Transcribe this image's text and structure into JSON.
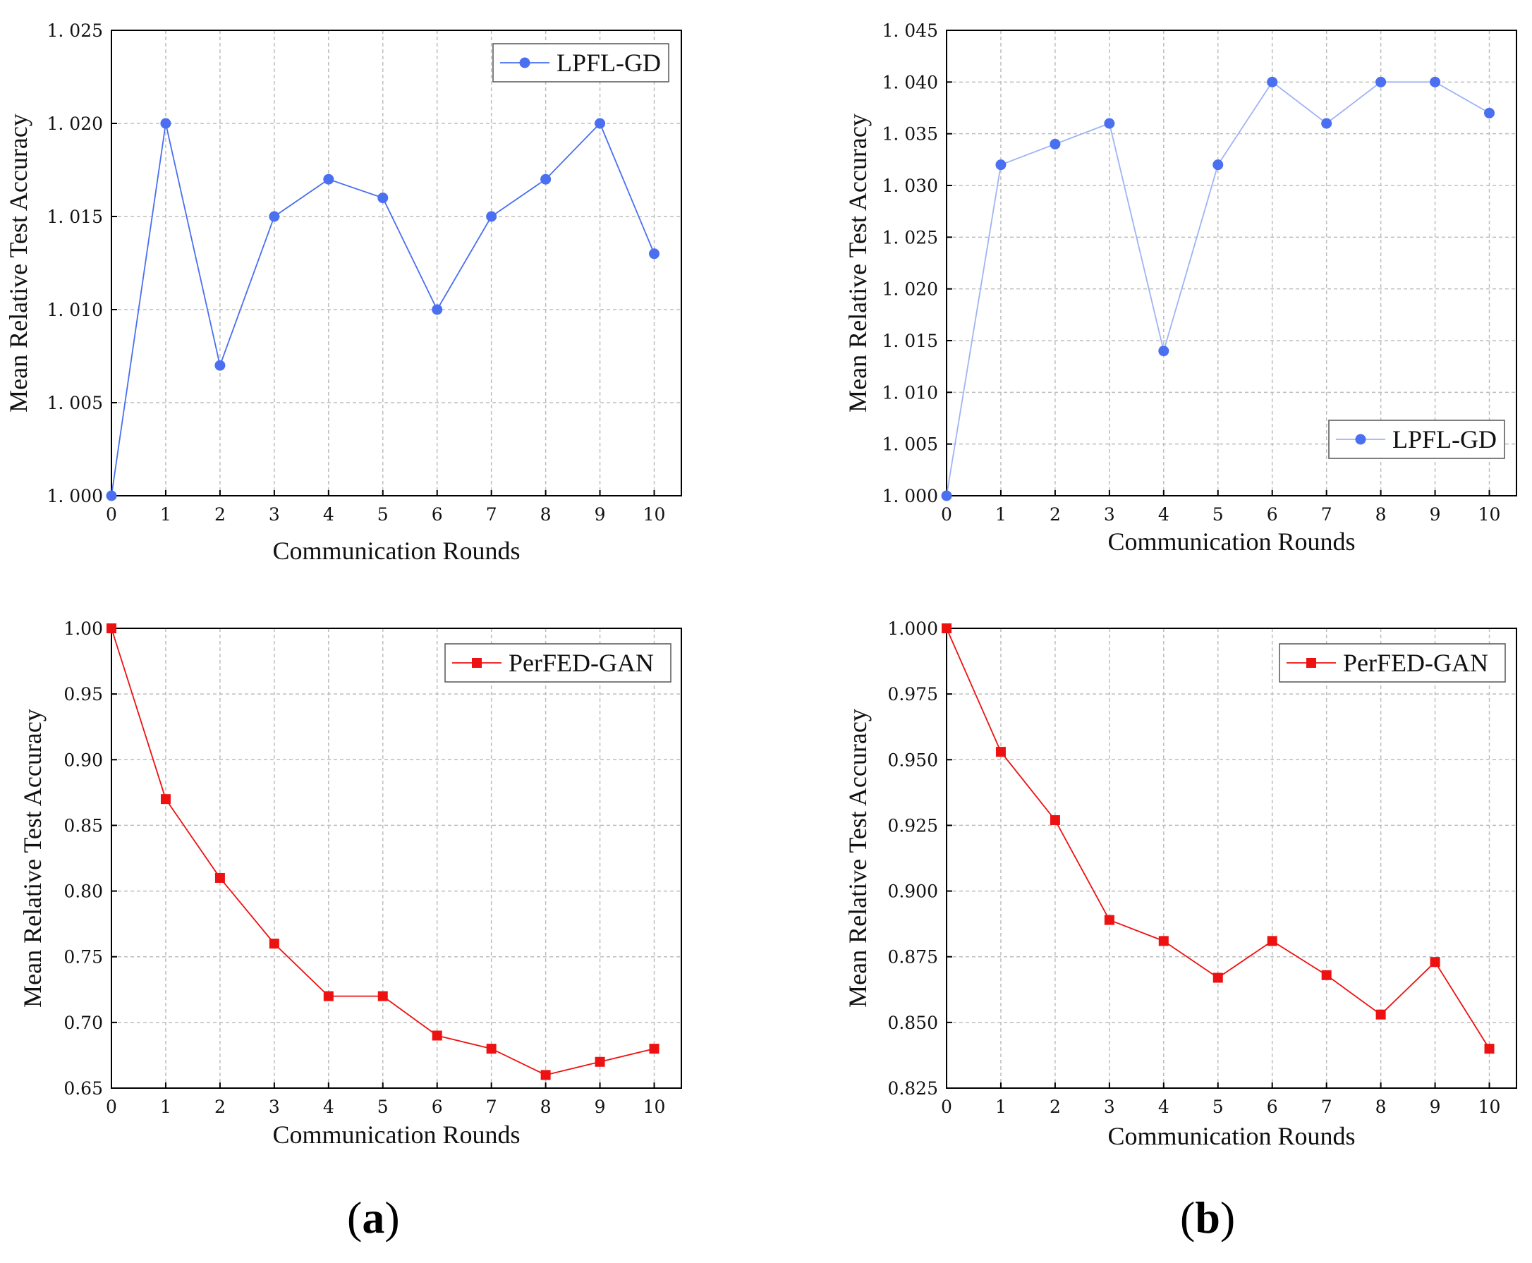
{
  "panel_labels": {
    "a": "a",
    "b": "b"
  },
  "chart_data": [
    {
      "type": "line",
      "panel": "a-top",
      "title": "",
      "xlabel": "Communication Rounds",
      "ylabel": "Mean Relative Test Accuracy",
      "x": [
        0,
        1,
        2,
        3,
        4,
        5,
        6,
        7,
        8,
        9,
        10
      ],
      "xlim": [
        0,
        10.5
      ],
      "ylim": [
        1.0,
        1.025
      ],
      "yticks": [
        1.0,
        1.005,
        1.01,
        1.015,
        1.02,
        1.025
      ],
      "ytick_labels": [
        "1. 000",
        "1. 005",
        "1. 010",
        "1. 015",
        "1. 020",
        "1. 025"
      ],
      "xticks": [
        0,
        1,
        2,
        3,
        4,
        5,
        6,
        7,
        8,
        9,
        10
      ],
      "xtick_labels": [
        "0",
        "1",
        "2",
        "3",
        "4",
        "5",
        "6",
        "7",
        "8",
        "9",
        "10"
      ],
      "grid": true,
      "legend_position": "top-right",
      "series": [
        {
          "name": "LPFL-GD",
          "color": "#4a6ff0",
          "marker": "circle",
          "values": [
            1.0,
            1.02,
            1.007,
            1.015,
            1.017,
            1.016,
            1.01,
            1.015,
            1.017,
            1.02,
            1.013
          ]
        }
      ]
    },
    {
      "type": "line",
      "panel": "b-top",
      "title": "",
      "xlabel": "Communication Rounds",
      "ylabel": "Mean Relative Test Accuracy",
      "x": [
        0,
        1,
        2,
        3,
        4,
        5,
        6,
        7,
        8,
        9,
        10
      ],
      "xlim": [
        0,
        10.5
      ],
      "ylim": [
        1.0,
        1.045
      ],
      "yticks": [
        1.0,
        1.005,
        1.01,
        1.015,
        1.02,
        1.025,
        1.03,
        1.035,
        1.04,
        1.045
      ],
      "ytick_labels": [
        "1. 000",
        "1. 005",
        "1. 010",
        "1. 015",
        "1. 020",
        "1. 025",
        "1. 030",
        "1. 035",
        "1. 040",
        "1. 045"
      ],
      "xticks": [
        0,
        1,
        2,
        3,
        4,
        5,
        6,
        7,
        8,
        9,
        10
      ],
      "xtick_labels": [
        "0",
        "1",
        "2",
        "3",
        "4",
        "5",
        "6",
        "7",
        "8",
        "9",
        "10"
      ],
      "grid": true,
      "legend_position": "bottom-right",
      "series": [
        {
          "name": "LPFL-GD",
          "color": "#4a6ff0",
          "line_color": "#9fb4f3",
          "marker": "circle",
          "values": [
            1.0,
            1.032,
            1.034,
            1.036,
            1.014,
            1.032,
            1.04,
            1.036,
            1.04,
            1.04,
            1.037
          ]
        }
      ]
    },
    {
      "type": "line",
      "panel": "a-bottom",
      "title": "",
      "xlabel": "Communication Rounds",
      "ylabel": "Mean Relative Test Accuracy",
      "x": [
        0,
        1,
        2,
        3,
        4,
        5,
        6,
        7,
        8,
        9,
        10
      ],
      "xlim": [
        0,
        10.5
      ],
      "ylim": [
        0.65,
        1.0
      ],
      "yticks": [
        0.65,
        0.7,
        0.75,
        0.8,
        0.85,
        0.9,
        0.95,
        1.0
      ],
      "ytick_labels": [
        "0.65",
        "0.70",
        "0.75",
        "0.80",
        "0.85",
        "0.90",
        "0.95",
        "1.00"
      ],
      "xticks": [
        0,
        1,
        2,
        3,
        4,
        5,
        6,
        7,
        8,
        9,
        10
      ],
      "xtick_labels": [
        "0",
        "1",
        "2",
        "3",
        "4",
        "5",
        "6",
        "7",
        "8",
        "9",
        "10"
      ],
      "grid": true,
      "legend_position": "top-right",
      "series": [
        {
          "name": "PerFED-GAN",
          "color": "#ee1111",
          "marker": "square",
          "values": [
            1.0,
            0.87,
            0.81,
            0.76,
            0.72,
            0.72,
            0.69,
            0.68,
            0.66,
            0.67,
            0.68
          ]
        }
      ]
    },
    {
      "type": "line",
      "panel": "b-bottom",
      "title": "",
      "xlabel": "Communication Rounds",
      "ylabel": "Mean Relative Test Accuracy",
      "x": [
        0,
        1,
        2,
        3,
        4,
        5,
        6,
        7,
        8,
        9,
        10
      ],
      "xlim": [
        0,
        10.5
      ],
      "ylim": [
        0.825,
        1.0
      ],
      "yticks": [
        0.825,
        0.85,
        0.875,
        0.9,
        0.925,
        0.95,
        0.975,
        1.0
      ],
      "ytick_labels": [
        "0.825",
        "0.850",
        "0.875",
        "0.900",
        "0.925",
        "0.950",
        "0.975",
        "1.000"
      ],
      "xticks": [
        0,
        1,
        2,
        3,
        4,
        5,
        6,
        7,
        8,
        9,
        10
      ],
      "xtick_labels": [
        "0",
        "1",
        "2",
        "3",
        "4",
        "5",
        "6",
        "7",
        "8",
        "9",
        "10"
      ],
      "grid": true,
      "legend_position": "top-right",
      "series": [
        {
          "name": "PerFED-GAN",
          "color": "#ee1111",
          "marker": "square",
          "values": [
            1.0,
            0.953,
            0.927,
            0.889,
            0.881,
            0.867,
            0.881,
            0.868,
            0.853,
            0.873,
            0.84
          ]
        }
      ]
    }
  ]
}
